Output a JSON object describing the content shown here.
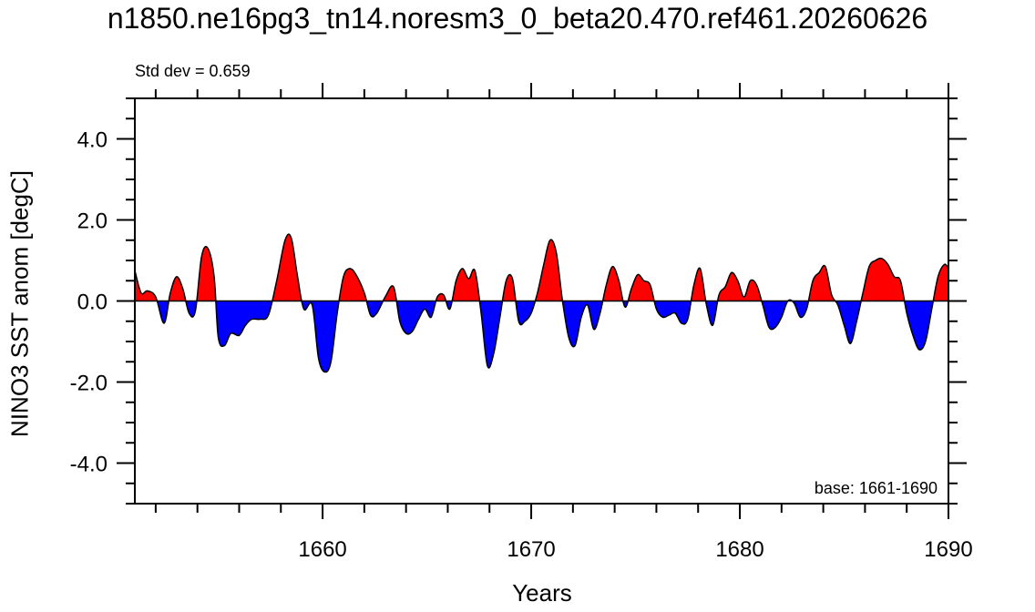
{
  "chart_data": {
    "type": "area",
    "title": "n1850.ne16pg3_tn14.noresm3_0_beta20.470.ref461.20260626",
    "xlabel": "Years",
    "ylabel": "NINO3 SST anom [degC]",
    "top_left_annotation": "Std dev = 0.659",
    "bottom_right_annotation": "base: 1661-1690",
    "xlim": [
      1651,
      1690
    ],
    "ylim": [
      -5,
      5
    ],
    "xticks": [
      1660,
      1670,
      1680,
      1690
    ],
    "xtick_labels": [
      "1660",
      "1670",
      "1680",
      "1690"
    ],
    "yticks": [
      4,
      2,
      0,
      -2,
      -4
    ],
    "ytick_labels": [
      "4.0",
      "2.0",
      "0.0",
      "-2.0",
      "-4.0"
    ],
    "positive_color": "#ff0000",
    "negative_color": "#0000ff",
    "grid": false,
    "series": [
      {
        "x": [
          1651.0,
          1651.3,
          1651.6,
          1652.0,
          1652.4,
          1652.7,
          1653.0,
          1653.3,
          1653.6,
          1653.9,
          1654.2,
          1654.5,
          1654.8,
          1655.0,
          1655.3,
          1655.6,
          1656.0,
          1656.3,
          1656.6,
          1657.0,
          1657.4,
          1657.8,
          1658.2,
          1658.5,
          1658.8,
          1659.1,
          1659.5,
          1659.8,
          1660.1,
          1660.4,
          1660.7,
          1661.0,
          1661.3,
          1661.6,
          1662.0,
          1662.3,
          1662.6,
          1663.0,
          1663.4,
          1663.7,
          1664.0,
          1664.3,
          1664.6,
          1664.9,
          1665.2,
          1665.5,
          1665.8,
          1666.1,
          1666.4,
          1666.7,
          1667.0,
          1667.3,
          1667.6,
          1667.9,
          1668.2,
          1668.5,
          1668.8,
          1669.1,
          1669.4,
          1669.7,
          1670.0,
          1670.3,
          1670.6,
          1670.9,
          1671.2,
          1671.5,
          1671.8,
          1672.1,
          1672.4,
          1672.7,
          1673.0,
          1673.3,
          1673.6,
          1673.9,
          1674.2,
          1674.5,
          1674.8,
          1675.1,
          1675.4,
          1675.7,
          1676.0,
          1676.3,
          1676.6,
          1676.9,
          1677.2,
          1677.5,
          1677.8,
          1678.1,
          1678.4,
          1678.7,
          1679.0,
          1679.3,
          1679.6,
          1679.9,
          1680.2,
          1680.5,
          1680.8,
          1681.1,
          1681.4,
          1681.7,
          1682.0,
          1682.3,
          1682.6,
          1682.9,
          1683.2,
          1683.5,
          1683.8,
          1684.1,
          1684.4,
          1684.7,
          1685.0,
          1685.3,
          1685.6,
          1685.9,
          1686.2,
          1686.5,
          1686.8,
          1687.1,
          1687.4,
          1687.7,
          1688.0,
          1688.3,
          1688.6,
          1688.9,
          1689.2,
          1689.5,
          1689.8,
          1690.0
        ],
        "y": [
          0.75,
          0.2,
          0.25,
          0.1,
          -0.55,
          0.2,
          0.6,
          0.3,
          -0.3,
          -0.25,
          1.1,
          1.3,
          0.6,
          -0.9,
          -1.1,
          -0.8,
          -0.85,
          -0.6,
          -0.45,
          -0.45,
          -0.35,
          0.5,
          1.5,
          1.55,
          0.6,
          -0.2,
          -0.1,
          -1.4,
          -1.75,
          -1.5,
          -0.3,
          0.6,
          0.8,
          0.65,
          0.2,
          -0.35,
          -0.3,
          0.1,
          0.35,
          -0.5,
          -0.8,
          -0.75,
          -0.45,
          -0.2,
          -0.4,
          0.1,
          0.15,
          -0.2,
          0.5,
          0.8,
          0.55,
          0.75,
          -0.3,
          -1.6,
          -1.3,
          -0.4,
          0.5,
          0.55,
          -0.5,
          -0.5,
          -0.3,
          0.2,
          0.9,
          1.5,
          1.2,
          0.0,
          -0.9,
          -1.1,
          -0.4,
          -0.1,
          -0.7,
          -0.3,
          0.4,
          0.85,
          0.5,
          -0.15,
          0.3,
          0.65,
          0.5,
          0.4,
          -0.2,
          -0.4,
          -0.35,
          -0.3,
          -0.55,
          -0.45,
          0.4,
          0.8,
          -0.1,
          -0.6,
          0.15,
          0.35,
          0.7,
          0.5,
          0.1,
          0.5,
          0.4,
          -0.1,
          -0.65,
          -0.65,
          -0.4,
          0.0,
          -0.05,
          -0.4,
          -0.2,
          0.5,
          0.7,
          0.85,
          0.15,
          -0.1,
          -0.6,
          -1.05,
          -0.5,
          0.2,
          0.85,
          1.0,
          1.05,
          0.9,
          0.6,
          0.5,
          -0.3,
          -0.85,
          -1.2,
          -1.0,
          -0.2,
          0.6,
          0.9,
          0.8
        ]
      }
    ]
  }
}
